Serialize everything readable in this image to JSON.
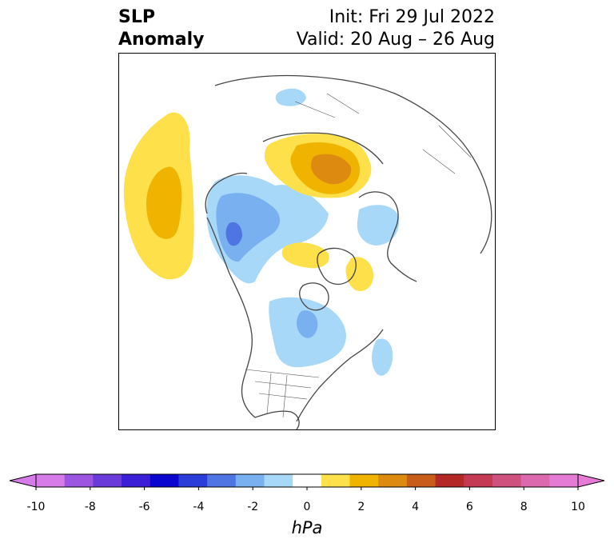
{
  "title": {
    "left_line1": "SLP",
    "left_line2": "Anomaly",
    "right_line1": "Init: Fri 29 Jul 2022",
    "right_line2": "Valid: 20 Aug – 26 Aug"
  },
  "colorbar": {
    "unit": "hPa",
    "ticks": [
      "-10",
      "-8",
      "-6",
      "-4",
      "-2",
      "0",
      "2",
      "4",
      "6",
      "8",
      "10"
    ],
    "colors": [
      "#d77be8",
      "#9b55e0",
      "#6a3bd8",
      "#3a1fd6",
      "#0a06d0",
      "#2a3dd8",
      "#4f75e2",
      "#78b0f0",
      "#a8d8f8",
      "#ffffff",
      "#fde04a",
      "#f0b400",
      "#dc8a10",
      "#c85c1a",
      "#b42828",
      "#c43a52",
      "#cf527e",
      "#dc68ad",
      "#e67bd6"
    ],
    "extend_low_color": "#d77be8",
    "extend_high_color": "#e67bd6"
  },
  "map": {
    "projection": "north-polar stereographic",
    "field": "sea level pressure anomaly",
    "colors": {
      "light_blue": "#a8d8f8",
      "mid_blue": "#78b0f0",
      "blue": "#4f75e2",
      "light_yellow": "#fde04a",
      "yellow": "#f0b400",
      "orange": "#dc8a10",
      "coast": "#444444"
    }
  }
}
